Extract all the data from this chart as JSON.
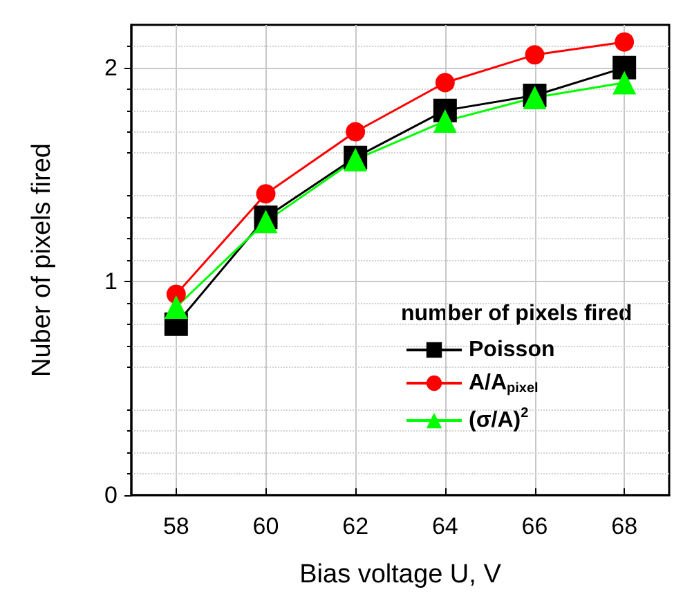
{
  "chart_data": {
    "type": "line",
    "xlabel": "Bias voltage U, V",
    "ylabel": "Nuber of pixels fired",
    "legend_title": "number of pixels fired",
    "x": [
      58,
      60,
      62,
      64,
      66,
      68
    ],
    "series": [
      {
        "name": "Poisson",
        "color": "#000000",
        "marker": "square",
        "values": [
          0.8,
          1.3,
          1.58,
          1.8,
          1.87,
          2.0
        ]
      },
      {
        "name": "A/A$_{pixel}$",
        "color": "#ff0000",
        "marker": "circle",
        "values": [
          0.94,
          1.41,
          1.7,
          1.93,
          2.06,
          2.12
        ]
      },
      {
        "name": "(σ/A)$^{2}$",
        "color": "#00ff00",
        "marker": "triangle",
        "values": [
          0.88,
          1.28,
          1.57,
          1.75,
          1.86,
          1.93
        ]
      }
    ],
    "xlim": [
      57,
      69
    ],
    "xticks": [
      58,
      60,
      62,
      64,
      66,
      68
    ],
    "ylim": [
      0,
      2.2
    ],
    "yticks": [
      0,
      1,
      2
    ],
    "grid": true,
    "legend": "right"
  }
}
